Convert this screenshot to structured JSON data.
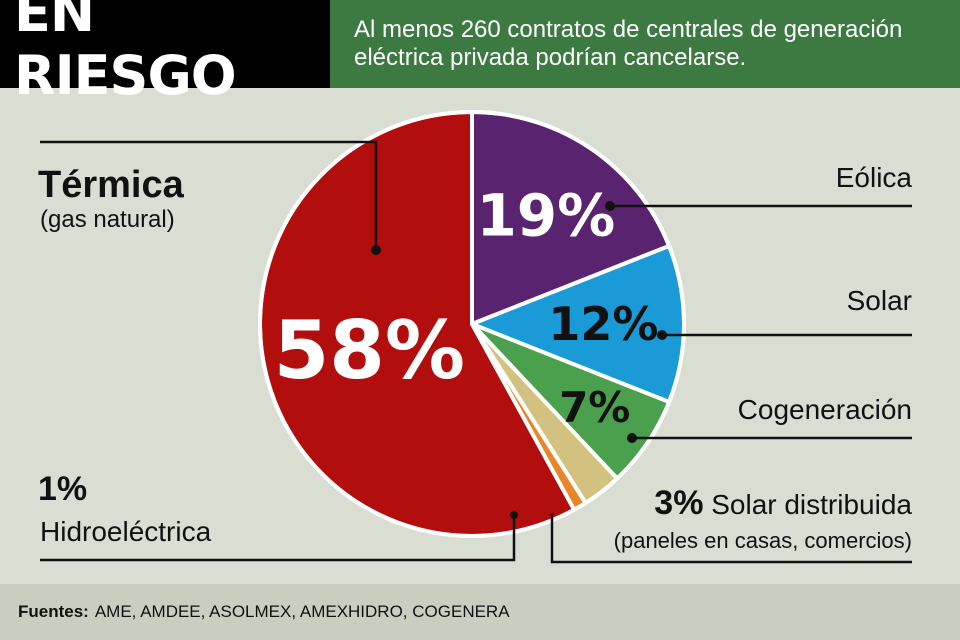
{
  "header": {
    "title": "EN RIESGO",
    "subtitle_line1": "Al menos 260 contratos de centrales de generación",
    "subtitle_line2": "eléctrica privada podrían cancelarse."
  },
  "labels": {
    "termica_name": "Térmica",
    "termica_sub": "(gas natural)",
    "eolica": "Eólica",
    "solar": "Solar",
    "cogeneracion": "Cogeneración",
    "solar_dist_pct": "3%",
    "solar_dist_name": "Solar distribuida",
    "solar_dist_sub": "(paneles en casas, comercios)",
    "hidro_pct": "1%",
    "hidro_name": "Hidroeléctrica"
  },
  "footer": {
    "label": "Fuentes:",
    "text": "AME, AMDEE, ASOLMEX, AMEXHIDRO, COGENERA"
  },
  "chart_data": {
    "type": "pie",
    "slices": [
      {
        "label": "Eólica",
        "value": 19,
        "color": "#5a2370",
        "text": "19%",
        "text_color": "#ffffff"
      },
      {
        "label": "Solar",
        "value": 12,
        "color": "#1a9ad6",
        "text": "12%",
        "text_color": "#111111"
      },
      {
        "label": "Cogeneración",
        "value": 7,
        "color": "#4ba04e",
        "text": "7%",
        "text_color": "#111111"
      },
      {
        "label": "Solar distribuida",
        "value": 3,
        "color": "#d3c27f",
        "text": "",
        "text_color": "#111111"
      },
      {
        "label": "Hidroeléctrica",
        "value": 1,
        "color": "#e8872a",
        "text": "",
        "text_color": "#111111"
      },
      {
        "label": "Térmica",
        "value": 58,
        "color": "#b30e0e",
        "text": "58%",
        "text_color": "#ffffff"
      }
    ]
  }
}
